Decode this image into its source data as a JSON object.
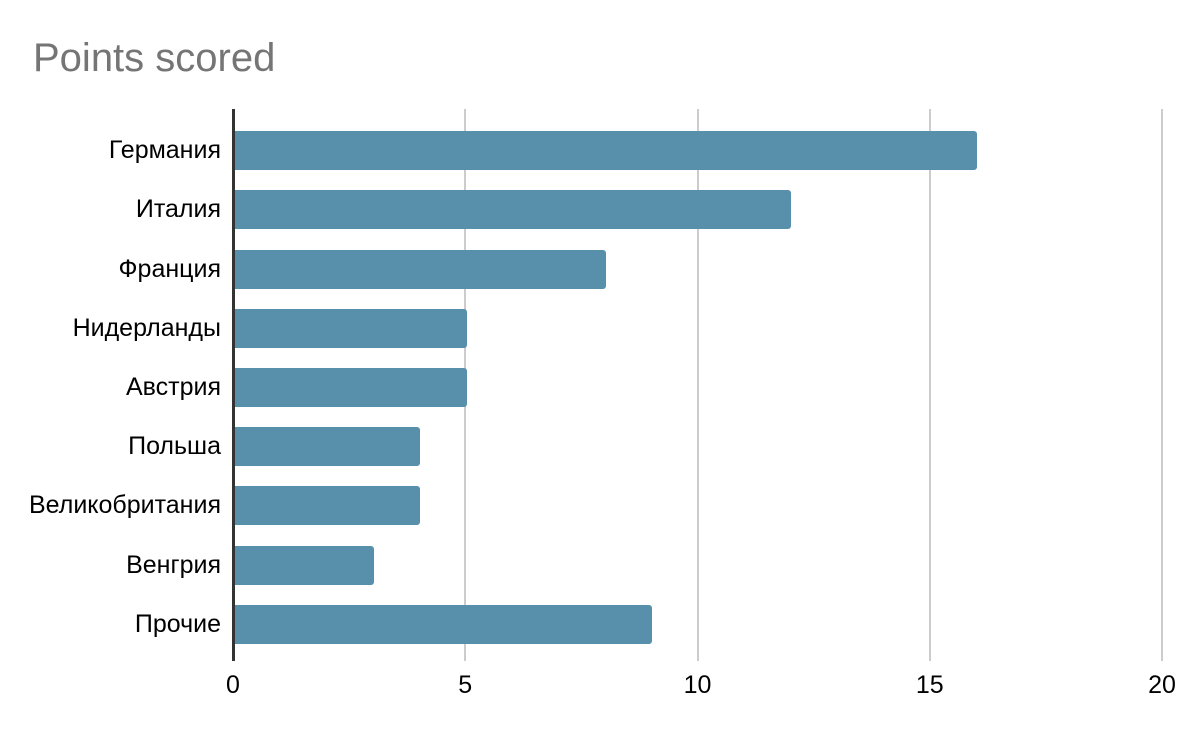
{
  "chart_data": {
    "type": "bar",
    "orientation": "horizontal",
    "title": "Points scored",
    "categories": [
      "Германия",
      "Италия",
      "Франция",
      "Нидерланды",
      "Австрия",
      "Польша",
      "Великобритания",
      "Венгрия",
      "Прочие"
    ],
    "values": [
      16,
      12,
      8,
      5,
      5,
      4,
      4,
      3,
      9
    ],
    "x_ticks": [
      "0",
      "5",
      "10",
      "15",
      "20"
    ],
    "xlim": [
      0,
      20
    ],
    "xlabel": "",
    "ylabel": "",
    "grid": true,
    "legend_position": "none",
    "bar_color": "#5890ab",
    "title_color": "#757575",
    "gridline_color": "#cccccc",
    "axis_color": "#333333"
  }
}
